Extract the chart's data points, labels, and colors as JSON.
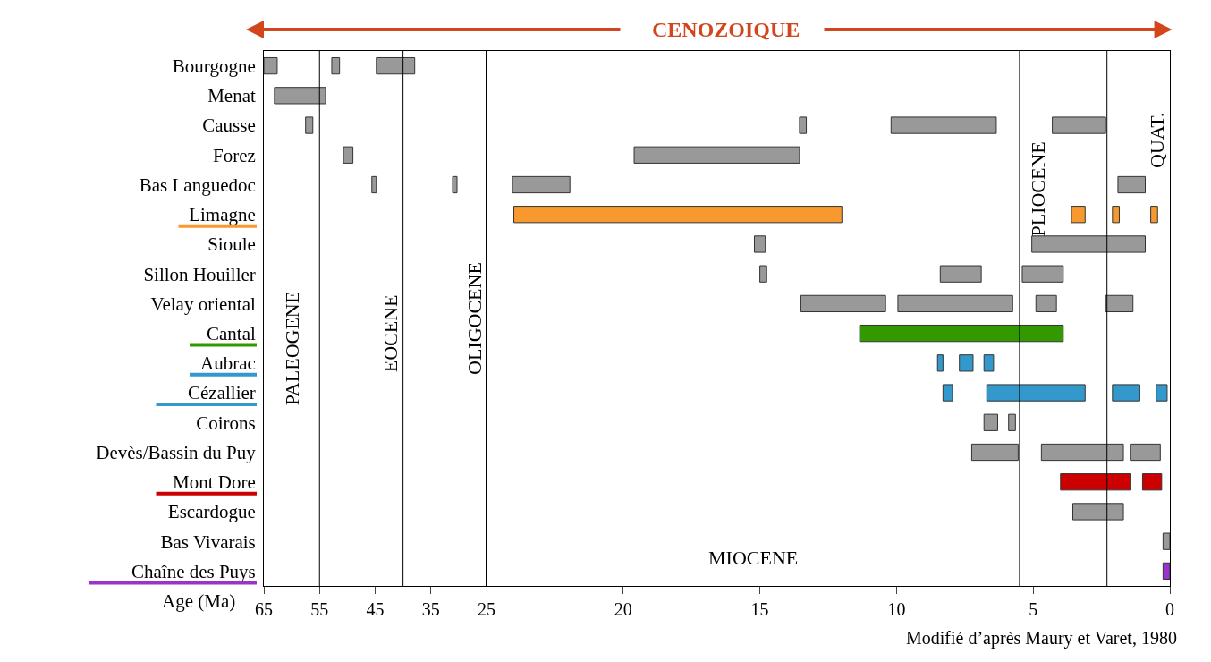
{
  "chart_data": [
    {
      "type": "bar",
      "orientation": "horizontal",
      "xlabel": "Age (Ma)",
      "categories": [
        "Bourgogne",
        "Menat",
        "Causse",
        "Forez",
        "Bas Languedoc",
        "Limagne",
        "Sioule",
        "Sillon Houiller",
        "Velay oriental",
        "Cantal",
        "Aubrac",
        "Cézallier",
        "Coirons",
        "Devès/Bassin du Puy",
        "Mont Dore",
        "Escardogue",
        "Bas Vivarais",
        "Chaîne des Puys"
      ],
      "xlim": [
        65,
        25
      ],
      "xticks": [
        65,
        55,
        45,
        35
      ],
      "series": [
        {
          "color": "#999999",
          "base": [
            62.6,
            53.9,
            56.2,
            49.0,
            44.8,
            null,
            null,
            null,
            null,
            null,
            null,
            null,
            null,
            null,
            null,
            null,
            null,
            null
          ],
          "values": [
            2.4,
            9.2,
            1.3,
            1.7,
            0.8,
            null,
            null,
            null,
            null,
            null,
            null,
            null,
            null,
            null,
            null,
            null,
            null,
            null
          ]
        },
        {
          "color": "#999999",
          "base": [
            51.4,
            null,
            null,
            null,
            30.3,
            null,
            null,
            null,
            null,
            null,
            null,
            null,
            null,
            null,
            null,
            null,
            null,
            null
          ],
          "values": [
            1.4,
            null,
            null,
            null,
            0.8,
            null,
            null,
            null,
            null,
            null,
            null,
            null,
            null,
            null,
            null,
            null,
            null,
            null
          ]
        },
        {
          "color": "#999999",
          "base": [
            37.9,
            null,
            null,
            null,
            null,
            null,
            null,
            null,
            null,
            null,
            null,
            null,
            null,
            null,
            null,
            null,
            null,
            null
          ],
          "values": [
            6.9,
            null,
            null,
            null,
            null,
            null,
            null,
            null,
            null,
            null,
            null,
            null,
            null,
            null,
            null,
            null,
            null,
            null
          ]
        }
      ],
      "ref_lines": [
        {
          "axis": "x",
          "value": 55
        },
        {
          "axis": "x",
          "value": 40
        }
      ],
      "annotations": [
        "CENOZOIQUE",
        "PALEOGENE",
        "EOCENE",
        "OLIGOCENE"
      ]
    },
    {
      "type": "bar",
      "orientation": "horizontal",
      "tick_labels": "x",
      "categories": [
        "Bourgogne",
        "Menat",
        "Causse",
        "Forez",
        "Bas Languedoc",
        "Limagne",
        "Sioule",
        "Sillon Houiller",
        "Velay oriental",
        "Cantal",
        "Aubrac",
        "Cézallier",
        "Coirons",
        "Devès/Bassin du Puy",
        "Mont Dore",
        "Escardogue",
        "Bas Vivarais",
        "Chaîne des Puys"
      ],
      "xlim": [
        25,
        0
      ],
      "xticks": [
        25,
        20,
        15,
        10,
        5,
        0
      ],
      "series": [
        {
          "color": "#999999",
          "colors": [
            null,
            null,
            null,
            null,
            null,
            "#f7992f",
            null,
            null,
            null,
            "#339900",
            "#3399cc",
            "#3399cc",
            null,
            null,
            "#cc0000",
            null,
            null,
            "#9933cc"
          ],
          "base": [
            null,
            null,
            13.3,
            13.55,
            21.95,
            12.0,
            14.8,
            14.75,
            10.4,
            3.9,
            8.3,
            7.95,
            6.3,
            5.55,
            1.45,
            1.7,
            0,
            0
          ],
          "values": [
            null,
            null,
            0.25,
            6.05,
            2.1,
            12.0,
            0.4,
            0.25,
            3.1,
            7.45,
            0.2,
            0.35,
            0.5,
            1.7,
            2.55,
            1.85,
            0.25,
            0.25
          ]
        },
        {
          "color": "#999999",
          "colors": [
            null,
            null,
            null,
            null,
            null,
            "#f7992f",
            null,
            null,
            null,
            null,
            "#3399cc",
            "#3399cc",
            null,
            null,
            "#cc0000",
            null,
            null,
            null
          ],
          "base": [
            null,
            null,
            6.35,
            null,
            0.9,
            3.1,
            0.9,
            6.9,
            5.75,
            null,
            7.2,
            3.1,
            5.65,
            1.7,
            0.3,
            null,
            null,
            null
          ],
          "values": [
            null,
            null,
            3.85,
            null,
            1.0,
            0.5,
            4.15,
            1.5,
            4.2,
            null,
            0.5,
            3.6,
            0.25,
            3.0,
            0.7,
            null,
            null,
            null
          ]
        },
        {
          "color": "#999999",
          "colors": [
            null,
            null,
            null,
            null,
            null,
            "#f7992f",
            null,
            null,
            null,
            null,
            "#3399cc",
            "#3399cc",
            null,
            null,
            null,
            null,
            null,
            null
          ],
          "base": [
            null,
            null,
            2.35,
            null,
            null,
            1.85,
            null,
            3.9,
            4.15,
            null,
            6.45,
            1.1,
            null,
            0.35,
            null,
            null,
            null,
            null
          ],
          "values": [
            null,
            null,
            1.95,
            null,
            null,
            0.25,
            null,
            1.5,
            0.75,
            null,
            0.35,
            1.0,
            null,
            1.1,
            null,
            null,
            null,
            null
          ]
        },
        {
          "color": "#999999",
          "colors": [
            null,
            null,
            null,
            null,
            null,
            "#f7992f",
            null,
            null,
            null,
            null,
            null,
            "#3399cc",
            null,
            null,
            null,
            null,
            null,
            null
          ],
          "base": [
            null,
            null,
            null,
            null,
            null,
            0.45,
            null,
            null,
            1.35,
            null,
            null,
            0.1,
            null,
            null,
            null,
            null,
            null,
            null
          ],
          "values": [
            null,
            null,
            null,
            null,
            null,
            0.25,
            null,
            null,
            1.0,
            null,
            null,
            0.4,
            null,
            null,
            null,
            null,
            null,
            null
          ]
        }
      ],
      "ref_lines": [
        {
          "axis": "x",
          "value": 5.5
        },
        {
          "axis": "x",
          "value": 2.3
        }
      ],
      "annotations": [
        "MIOCENE",
        "PLIOCENE",
        "QUAT.",
        "Modifié d’après Maury et Varet, 1980"
      ]
    }
  ]
}
